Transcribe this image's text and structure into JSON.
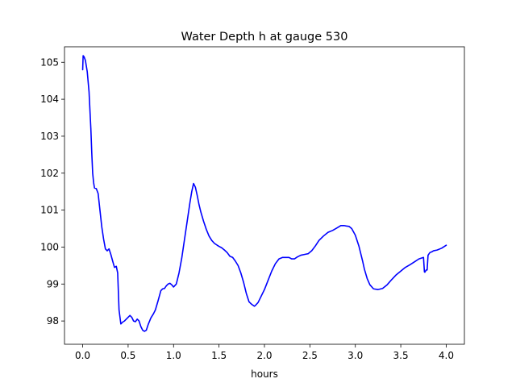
{
  "chart_data": {
    "type": "line",
    "title": "Water Depth h at gauge 530",
    "xlabel": "hours",
    "ylabel": "",
    "xlim": [
      -0.2,
      4.2
    ],
    "ylim": [
      97.37,
      105.42
    ],
    "xticks": [
      0.0,
      0.5,
      1.0,
      1.5,
      2.0,
      2.5,
      3.0,
      3.5,
      4.0
    ],
    "xtick_labels": [
      "0.0",
      "0.5",
      "1.0",
      "1.5",
      "2.0",
      "2.5",
      "3.0",
      "3.5",
      "4.0"
    ],
    "yticks": [
      98,
      99,
      100,
      101,
      102,
      103,
      104,
      105
    ],
    "ytick_labels": [
      "98",
      "99",
      "100",
      "101",
      "102",
      "103",
      "104",
      "105"
    ],
    "grid": false,
    "series": [
      {
        "color": "#0000ff",
        "x": [
          0.0,
          0.005,
          0.015,
          0.03,
          0.05,
          0.07,
          0.09,
          0.1,
          0.11,
          0.12,
          0.13,
          0.15,
          0.17,
          0.19,
          0.21,
          0.23,
          0.25,
          0.27,
          0.29,
          0.31,
          0.33,
          0.35,
          0.37,
          0.385,
          0.4,
          0.42,
          0.44,
          0.46,
          0.48,
          0.5,
          0.52,
          0.54,
          0.56,
          0.58,
          0.6,
          0.62,
          0.64,
          0.66,
          0.68,
          0.7,
          0.72,
          0.75,
          0.78,
          0.8,
          0.83,
          0.86,
          0.88,
          0.9,
          0.92,
          0.94,
          0.96,
          0.98,
          1.0,
          1.03,
          1.06,
          1.09,
          1.12,
          1.15,
          1.18,
          1.2,
          1.22,
          1.24,
          1.26,
          1.28,
          1.3,
          1.33,
          1.36,
          1.39,
          1.42,
          1.45,
          1.48,
          1.5,
          1.53,
          1.56,
          1.59,
          1.62,
          1.65,
          1.68,
          1.71,
          1.74,
          1.77,
          1.8,
          1.83,
          1.86,
          1.89,
          1.9,
          1.93,
          1.96,
          2.0,
          2.04,
          2.08,
          2.12,
          2.16,
          2.2,
          2.24,
          2.27,
          2.3,
          2.33,
          2.36,
          2.4,
          2.44,
          2.48,
          2.52,
          2.56,
          2.6,
          2.65,
          2.7,
          2.75,
          2.8,
          2.84,
          2.88,
          2.9,
          2.93,
          2.96,
          3.0,
          3.04,
          3.08,
          3.1,
          3.13,
          3.16,
          3.2,
          3.25,
          3.3,
          3.35,
          3.4,
          3.45,
          3.5,
          3.55,
          3.6,
          3.65,
          3.7,
          3.75,
          3.76,
          3.765,
          3.78,
          3.79,
          3.8,
          3.82,
          3.84,
          3.86,
          3.9,
          3.95,
          4.0
        ],
        "y": [
          104.8,
          105.18,
          105.15,
          105.05,
          104.75,
          104.2,
          103.2,
          102.55,
          102.0,
          101.75,
          101.6,
          101.58,
          101.45,
          101.0,
          100.55,
          100.22,
          99.95,
          99.9,
          99.95,
          99.8,
          99.62,
          99.45,
          99.48,
          99.3,
          98.3,
          97.92,
          97.97,
          98.0,
          98.05,
          98.1,
          98.15,
          98.1,
          98.0,
          97.98,
          98.05,
          98.0,
          97.85,
          97.75,
          97.72,
          97.75,
          97.9,
          98.08,
          98.2,
          98.3,
          98.55,
          98.82,
          98.87,
          98.88,
          98.95,
          99.0,
          99.02,
          98.98,
          98.92,
          99.0,
          99.3,
          99.7,
          100.2,
          100.7,
          101.2,
          101.5,
          101.72,
          101.62,
          101.4,
          101.15,
          100.95,
          100.7,
          100.48,
          100.3,
          100.18,
          100.1,
          100.05,
          100.02,
          99.98,
          99.92,
          99.85,
          99.75,
          99.72,
          99.62,
          99.5,
          99.3,
          99.05,
          98.75,
          98.52,
          98.45,
          98.4,
          98.42,
          98.5,
          98.65,
          98.85,
          99.1,
          99.35,
          99.55,
          99.68,
          99.72,
          99.72,
          99.72,
          99.68,
          99.68,
          99.73,
          99.78,
          99.8,
          99.82,
          99.9,
          100.03,
          100.18,
          100.3,
          100.4,
          100.45,
          100.52,
          100.58,
          100.58,
          100.57,
          100.56,
          100.5,
          100.32,
          100.02,
          99.62,
          99.4,
          99.15,
          98.98,
          98.87,
          98.85,
          98.88,
          98.98,
          99.12,
          99.25,
          99.35,
          99.45,
          99.52,
          99.6,
          99.68,
          99.72,
          99.33,
          99.32,
          99.38,
          99.38,
          99.78,
          99.85,
          99.87,
          99.9,
          99.92,
          99.97,
          100.05
        ]
      }
    ]
  }
}
